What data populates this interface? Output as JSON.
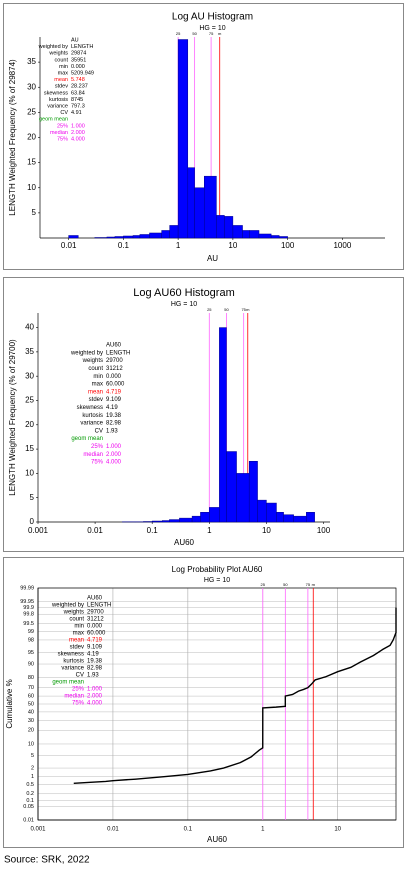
{
  "chart_data": [
    {
      "type": "histogram",
      "title": "Log AU Histogram",
      "subtitle": "HG = 10",
      "y_label": "LENGTH Weighted Frequency (% of 29874)",
      "x_label": "AU",
      "color": "#0000ff",
      "x_log": true,
      "bins": [
        0.01,
        0.015,
        0.02,
        0.03,
        0.05,
        0.07,
        0.1,
        0.15,
        0.2,
        0.3,
        0.5,
        0.7,
        1,
        1.5,
        2,
        3,
        5,
        7,
        10,
        15,
        20,
        30,
        50,
        70,
        100
      ],
      "values": [
        0.5,
        0,
        0,
        0.1,
        0.2,
        0.3,
        0.4,
        0.5,
        0.7,
        1.0,
        1.5,
        2.5,
        39.5,
        14,
        10,
        12.3,
        4.5,
        4.3,
        2.5,
        1.5,
        1.5,
        0.8,
        0.5,
        0.3
      ],
      "xlim": [
        0.003,
        6000
      ],
      "xticks": [
        0.01,
        0.1,
        1,
        10,
        100,
        1000
      ],
      "ylim": [
        0,
        40
      ],
      "yticks": [
        5,
        10,
        15,
        20,
        25,
        30,
        35
      ],
      "ref_lines": [
        {
          "label": "25",
          "value": 1,
          "color": "#ff66ff"
        },
        {
          "label": "50",
          "value": 2,
          "color": "#ff66ff"
        },
        {
          "label": "75",
          "value": 4,
          "color": "#ff66ff"
        },
        {
          "label": "m",
          "value": 5.748,
          "color": "#ff0000"
        }
      ],
      "stats": {
        "header": "AU",
        "rows": [
          {
            "label": "weighted by",
            "value": "LENGTH",
            "color": "#000000"
          },
          {
            "label": "weights",
            "value": "29874",
            "color": "#000000"
          },
          {
            "label": "count",
            "value": "35951",
            "color": "#000000"
          },
          {
            "label": "min",
            "value": "0.000",
            "color": "#000000"
          },
          {
            "label": "max",
            "value": "5209.949",
            "color": "#000000"
          },
          {
            "label": "mean",
            "value": "5.748",
            "color": "#ff0000"
          },
          {
            "label": "stdev",
            "value": "28.237",
            "color": "#000000"
          },
          {
            "label": "skewness",
            "value": "63.84",
            "color": "#000000"
          },
          {
            "label": "kurtosis",
            "value": "8745",
            "color": "#000000"
          },
          {
            "label": "variance",
            "value": "797.3",
            "color": "#000000"
          },
          {
            "label": "CV",
            "value": "4.91",
            "color": "#000000"
          },
          {
            "label": "geom mean",
            "color": "#009900"
          },
          {
            "label": "25%",
            "value": "1.000",
            "color": "#ee00ee"
          },
          {
            "label": "median",
            "value": "2.000",
            "color": "#ee00ee"
          },
          {
            "label": "75%",
            "value": "4.000",
            "color": "#ee00ee"
          }
        ]
      }
    },
    {
      "type": "histogram",
      "title": "Log AU60 Histogram",
      "subtitle": "HG = 10",
      "y_label": "LENGTH Weighted Frequency (% of 29700)",
      "x_label": "AU60",
      "color": "#0000ff",
      "x_log": true,
      "bins": [
        0.03,
        0.05,
        0.07,
        0.1,
        0.15,
        0.2,
        0.3,
        0.5,
        0.7,
        1,
        1.5,
        2,
        3,
        5,
        7,
        10,
        15,
        20,
        30,
        50,
        70
      ],
      "values": [
        0.05,
        0.05,
        0.1,
        0.2,
        0.3,
        0.5,
        0.8,
        1.2,
        2,
        3,
        40,
        14.5,
        10,
        12.5,
        4.5,
        3.9,
        2,
        1.5,
        1.2,
        2
      ],
      "xlim": [
        0.001,
        130
      ],
      "xticks": [
        0.001,
        0.01,
        0.1,
        1,
        10,
        100
      ],
      "ylim": [
        0,
        43
      ],
      "yticks": [
        0,
        5,
        10,
        15,
        20,
        25,
        30,
        35,
        40
      ],
      "ref_lines": [
        {
          "label": "25",
          "value": 1,
          "color": "#ff66ff"
        },
        {
          "label": "50",
          "value": 2,
          "color": "#ff66ff"
        },
        {
          "label": "75",
          "value": 4,
          "color": "#ff66ff"
        },
        {
          "label": "m",
          "value": 4.719,
          "color": "#ff0000"
        }
      ],
      "stats": {
        "header": "AU60",
        "rows": [
          {
            "label": "weighted by",
            "value": "LENGTH",
            "color": "#000000"
          },
          {
            "label": "weights",
            "value": "29700",
            "color": "#000000"
          },
          {
            "label": "count",
            "value": "31212",
            "color": "#000000"
          },
          {
            "label": "min",
            "value": "0.000",
            "color": "#000000"
          },
          {
            "label": "max",
            "value": "60.000",
            "color": "#000000"
          },
          {
            "label": "mean",
            "value": "4.719",
            "color": "#ff0000"
          },
          {
            "label": "stdev",
            "value": "9.109",
            "color": "#000000"
          },
          {
            "label": "skewness",
            "value": "4.19",
            "color": "#000000"
          },
          {
            "label": "kurtosis",
            "value": "19.38",
            "color": "#000000"
          },
          {
            "label": "variance",
            "value": "82.98",
            "color": "#000000"
          },
          {
            "label": "CV",
            "value": "1.93",
            "color": "#000000"
          },
          {
            "label": "geom mean",
            "color": "#009900"
          },
          {
            "label": "25%",
            "value": "1.000",
            "color": "#ee00ee"
          },
          {
            "label": "median",
            "value": "2.000",
            "color": "#ee00ee"
          },
          {
            "label": "75%",
            "value": "4.000",
            "color": "#ee00ee"
          }
        ]
      }
    },
    {
      "type": "probability",
      "title": "Log Probability Plot AU60",
      "subtitle": "HG = 10",
      "y_label": "Cumulative %",
      "x_label": "AU60",
      "color": "#000000",
      "x_log": true,
      "y_scale": "probit",
      "grid": true,
      "x": [
        0.003,
        0.005,
        0.008,
        0.01,
        0.02,
        0.05,
        0.1,
        0.2,
        0.3,
        0.5,
        0.7,
        0.9,
        0.999,
        1,
        1.5,
        1.999,
        2,
        2.5,
        3,
        3.5,
        4,
        4.5,
        5,
        7,
        10,
        15,
        20,
        30,
        40,
        50,
        55,
        60,
        60
      ],
      "values": [
        0.55,
        0.6,
        0.65,
        0.7,
        0.8,
        1.0,
        1.2,
        1.6,
        2,
        3,
        4.5,
        7,
        8,
        45,
        46,
        47,
        60,
        62,
        66,
        68,
        70,
        74,
        78,
        81,
        85,
        88,
        91,
        94,
        96,
        97,
        98,
        98.9,
        99.9
      ],
      "xlim": [
        0.001,
        60
      ],
      "xticks": [
        0.001,
        0.01,
        0.1,
        1,
        10
      ],
      "ylim": [
        0.01,
        99.99
      ],
      "yticks": [
        0.01,
        0.05,
        0.1,
        0.2,
        0.5,
        1,
        2,
        5,
        10,
        20,
        30,
        40,
        50,
        60,
        70,
        80,
        90,
        95,
        98,
        99,
        99.5,
        99.8,
        99.9,
        99.95,
        99.99
      ],
      "ref_lines": [
        {
          "label": "25",
          "value": 1,
          "color": "#ff66ff"
        },
        {
          "label": "50",
          "value": 2,
          "color": "#ff66ff"
        },
        {
          "label": "75",
          "value": 4,
          "color": "#ff66ff"
        },
        {
          "label": "m",
          "value": 4.719,
          "color": "#ff0000"
        }
      ],
      "stats": {
        "header": "AU60",
        "rows": [
          {
            "label": "weighted by",
            "value": "LENGTH",
            "color": "#000000"
          },
          {
            "label": "weights",
            "value": "29700",
            "color": "#000000"
          },
          {
            "label": "count",
            "value": "31212",
            "color": "#000000"
          },
          {
            "label": "min",
            "value": "0.000",
            "color": "#000000"
          },
          {
            "label": "max",
            "value": "60.000",
            "color": "#000000"
          },
          {
            "label": "mean",
            "value": "4.719",
            "color": "#ff0000"
          },
          {
            "label": "stdev",
            "value": "9.109",
            "color": "#000000"
          },
          {
            "label": "skewness",
            "value": "4.19",
            "color": "#000000"
          },
          {
            "label": "kurtosis",
            "value": "19.38",
            "color": "#000000"
          },
          {
            "label": "variance",
            "value": "82.98",
            "color": "#000000"
          },
          {
            "label": "CV",
            "value": "1.93",
            "color": "#000000"
          },
          {
            "label": "geom mean",
            "color": "#009900"
          },
          {
            "label": "25%",
            "value": "1.000",
            "color": "#ee00ee"
          },
          {
            "label": "median",
            "value": "2.000",
            "color": "#ee00ee"
          },
          {
            "label": "75%",
            "value": "4.000",
            "color": "#ee00ee"
          }
        ]
      }
    }
  ],
  "source": "Source: SRK, 2022"
}
